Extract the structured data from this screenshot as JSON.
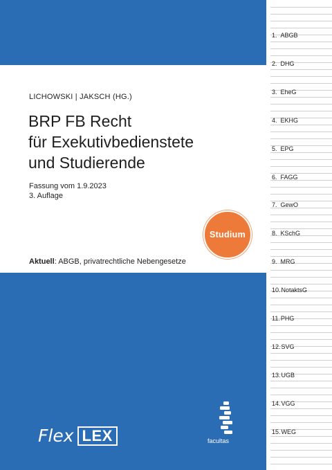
{
  "cover": {
    "authors": "LICHOWSKI | JAKSCH (HG.)",
    "title_lines": [
      "BRP FB Recht",
      "für Exekutivbedienstete",
      "und Studierende"
    ],
    "version": "Fassung vom 1.9.2023",
    "edition": "3. Auflage",
    "badge": "Studium",
    "current_label": "Aktuell",
    "current_text": ": ABGB, privatrechtliche Nebengesetze",
    "brand_flex": "Flex",
    "brand_lex": "LEX",
    "publisher": "facultas",
    "colors": {
      "cover_blue": "#2a6db5",
      "badge_orange": "#ee7a3a"
    }
  },
  "register": {
    "tabs": [
      {
        "num": "1.",
        "label": "ABGB"
      },
      {
        "num": "2.",
        "label": "DHG"
      },
      {
        "num": "3.",
        "label": "EheG"
      },
      {
        "num": "4.",
        "label": "EKHG"
      },
      {
        "num": "5.",
        "label": "EPG"
      },
      {
        "num": "6.",
        "label": "FAGG"
      },
      {
        "num": "7.",
        "label": "GewO"
      },
      {
        "num": "8.",
        "label": "KSchG"
      },
      {
        "num": "9.",
        "label": "MRG"
      },
      {
        "num": "10.",
        "label": "NotaktsG"
      },
      {
        "num": "11.",
        "label": "PHG"
      },
      {
        "num": "12.",
        "label": "SVG"
      },
      {
        "num": "13.",
        "label": "UGB"
      },
      {
        "num": "14.",
        "label": "VGG"
      },
      {
        "num": "15.",
        "label": "WEG"
      }
    ]
  }
}
